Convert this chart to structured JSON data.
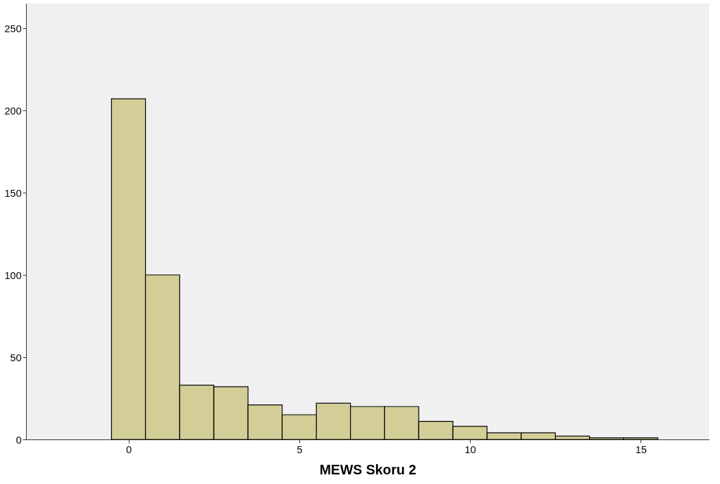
{
  "chart_data": {
    "type": "histogram",
    "xlabel": "MEWS Skoru 2",
    "color": "#d3ce97",
    "bins": [
      -0.5,
      0.5,
      1.5,
      2.5,
      3.5,
      4.5,
      5.5,
      6.5,
      7.5,
      8.5,
      9.5,
      10.5,
      11.5,
      12.5,
      13.5,
      14.5,
      15.5
    ],
    "values": [
      207,
      100,
      33,
      32,
      21,
      15,
      22,
      20,
      20,
      11,
      8,
      4,
      4,
      2,
      1,
      1
    ],
    "xlim": [
      -3,
      17
    ],
    "xticks": [
      0,
      5,
      10,
      15
    ],
    "ylim": [
      0,
      265
    ],
    "yticks": [
      0,
      50,
      100,
      150,
      200,
      250
    ],
    "grid": false
  }
}
